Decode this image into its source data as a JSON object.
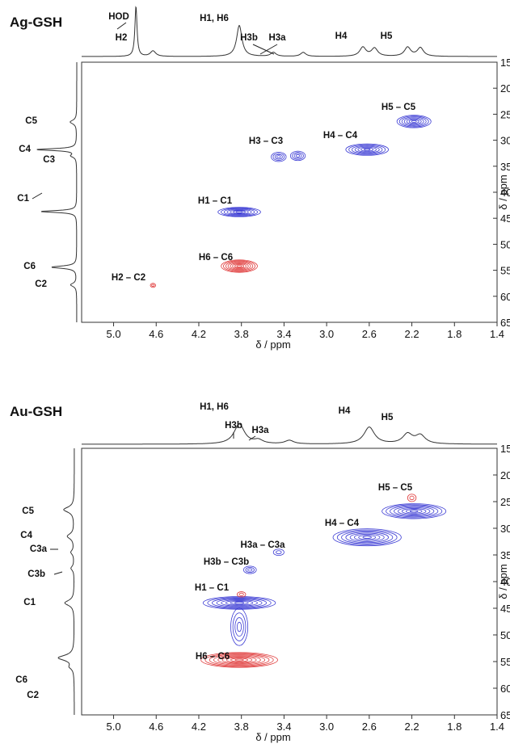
{
  "chart_data": [
    {
      "type": "hsqc-2d-nmr",
      "title": "Ag-GSH",
      "xlabel": "δ / ppm",
      "ylabel": "δ / ppm",
      "xlim": [
        5.3,
        1.4
      ],
      "ylim": [
        15,
        65
      ],
      "x_ticks": [
        "5.0",
        "4.6",
        "4.2",
        "3.8",
        "3.4",
        "3.0",
        "2.6",
        "2.2",
        "1.8",
        "1.4"
      ],
      "y_ticks": [
        "15",
        "20",
        "25",
        "30",
        "35",
        "40",
        "45",
        "50",
        "55",
        "60",
        "65"
      ],
      "top_projection": {
        "peaks": [
          {
            "label": "HOD",
            "x": 4.79,
            "height": 1.0,
            "width": 0.012
          },
          {
            "label": "H2",
            "x": 4.63,
            "height": 0.11,
            "width": 0.03
          },
          {
            "label": "H1, H6",
            "x": 3.82,
            "height": 0.62,
            "width": 0.03
          },
          {
            "label": "H3b",
            "x": 3.5,
            "height": 0.08,
            "width": 0.03
          },
          {
            "label": "H3a",
            "x": 3.22,
            "height": 0.08,
            "width": 0.03
          },
          {
            "label": "H4",
            "x": 2.66,
            "height": 0.18,
            "width": 0.035
          },
          {
            "label": "",
            "x": 2.55,
            "height": 0.16,
            "width": 0.035
          },
          {
            "label": "H5",
            "x": 2.24,
            "height": 0.18,
            "width": 0.035
          },
          {
            "label": "",
            "x": 2.12,
            "height": 0.17,
            "width": 0.035
          }
        ]
      },
      "side_projection": {
        "peaks": [
          {
            "label": "C5",
            "y": 26.5,
            "height": 0.13,
            "width": 0.45
          },
          {
            "label": "C4",
            "y": 31.8,
            "height": 0.8,
            "width": 0.22
          },
          {
            "label": "C3",
            "y": 33.0,
            "height": 0.1,
            "width": 0.35
          },
          {
            "label": "C1",
            "y": 43.7,
            "height": 0.72,
            "width": 0.22
          },
          {
            "label": "C6",
            "y": 54.4,
            "height": 0.5,
            "width": 0.28
          },
          {
            "label": "C2",
            "y": 57.8,
            "height": 0.12,
            "width": 0.4
          }
        ]
      },
      "cross_peaks": [
        {
          "label": "H5 – C5",
          "x": 2.18,
          "y": 26.4,
          "rx": 0.16,
          "ry": 1.2,
          "phase": "positive",
          "levels": 7
        },
        {
          "label": "H4 – C4",
          "x": 2.62,
          "y": 31.8,
          "rx": 0.2,
          "ry": 1.1,
          "phase": "positive",
          "levels": 7
        },
        {
          "label": "H3 – C3",
          "x": 3.45,
          "y": 33.2,
          "rx": 0.07,
          "ry": 0.9,
          "phase": "positive",
          "levels": 4
        },
        {
          "label": "",
          "x": 3.27,
          "y": 33.0,
          "rx": 0.07,
          "ry": 0.9,
          "phase": "positive",
          "levels": 4
        },
        {
          "label": "H1 – C1",
          "x": 3.82,
          "y": 43.8,
          "rx": 0.2,
          "ry": 0.9,
          "phase": "positive",
          "levels": 7
        },
        {
          "label": "H6 – C6",
          "x": 3.82,
          "y": 54.2,
          "rx": 0.17,
          "ry": 1.2,
          "phase": "negative",
          "levels": 8
        },
        {
          "label": "H2 – C2",
          "x": 4.63,
          "y": 57.9,
          "rx": 0.025,
          "ry": 0.4,
          "phase": "negative",
          "levels": 2
        }
      ]
    },
    {
      "type": "hsqc-2d-nmr",
      "title": "Au-GSH",
      "xlabel": "δ / ppm",
      "ylabel": "δ / ppm",
      "xlim": [
        5.3,
        1.4
      ],
      "ylim": [
        15,
        65
      ],
      "x_ticks": [
        "5.0",
        "4.6",
        "4.2",
        "3.8",
        "3.4",
        "3.0",
        "2.6",
        "2.2",
        "1.8",
        "1.4"
      ],
      "y_ticks": [
        "15",
        "20",
        "25",
        "30",
        "35",
        "40",
        "45",
        "50",
        "55",
        "60",
        "65"
      ],
      "top_projection": {
        "peaks": [
          {
            "label": "H1, H6",
            "x": 3.82,
            "height": 0.45,
            "width": 0.06
          },
          {
            "label": "H3b",
            "x": 3.64,
            "height": 0.08,
            "width": 0.05
          },
          {
            "label": "H3a",
            "x": 3.35,
            "height": 0.08,
            "width": 0.05
          },
          {
            "label": "H4",
            "x": 2.6,
            "height": 0.38,
            "width": 0.06
          },
          {
            "label": "H5",
            "x": 2.24,
            "height": 0.22,
            "width": 0.055
          },
          {
            "label": "",
            "x": 2.12,
            "height": 0.19,
            "width": 0.055
          }
        ]
      },
      "side_projection": {
        "peaks": [
          {
            "label": "C5",
            "y": 26.5,
            "height": 0.2,
            "width": 0.6
          },
          {
            "label": "C4",
            "y": 31.5,
            "height": 0.13,
            "width": 0.6
          },
          {
            "label": "C3a",
            "y": 34.5,
            "height": 0.06,
            "width": 0.5
          },
          {
            "label": "C3b",
            "y": 37.5,
            "height": 0.06,
            "width": 0.5
          },
          {
            "label": "C1",
            "y": 44.0,
            "height": 0.18,
            "width": 0.6
          },
          {
            "label": "C6",
            "y": 54.3,
            "height": 0.3,
            "width": 0.6
          },
          {
            "label": "C2",
            "y": 56.0,
            "height": 0.07,
            "width": 0.5
          }
        ]
      },
      "cross_peaks": [
        {
          "label": "H5 – C5",
          "x": 2.18,
          "y": 26.8,
          "rx": 0.3,
          "ry": 1.4,
          "phase": "positive",
          "levels": 8
        },
        {
          "label": "",
          "x": 2.2,
          "y": 24.3,
          "rx": 0.04,
          "ry": 0.7,
          "phase": "negative",
          "levels": 2
        },
        {
          "label": "H4 – C4",
          "x": 2.62,
          "y": 31.7,
          "rx": 0.32,
          "ry": 1.6,
          "phase": "positive",
          "levels": 8
        },
        {
          "label": "H3a – C3a",
          "x": 3.45,
          "y": 34.5,
          "rx": 0.05,
          "ry": 0.6,
          "phase": "positive",
          "levels": 2
        },
        {
          "label": "H3b – C3b",
          "x": 3.72,
          "y": 37.8,
          "rx": 0.06,
          "ry": 0.7,
          "phase": "positive",
          "levels": 3
        },
        {
          "label": "H1 – C1",
          "x": 3.82,
          "y": 44.0,
          "rx": 0.34,
          "ry": 1.2,
          "phase": "positive",
          "levels": 8
        },
        {
          "label": "",
          "x": 3.8,
          "y": 42.4,
          "rx": 0.04,
          "ry": 0.5,
          "phase": "negative",
          "levels": 2
        },
        {
          "label": "",
          "x": 3.82,
          "y": 48.5,
          "rx": 0.08,
          "ry": 3.5,
          "phase": "positive",
          "levels": 4
        },
        {
          "label": "H6 – C6",
          "x": 3.82,
          "y": 54.7,
          "rx": 0.36,
          "ry": 1.4,
          "phase": "negative",
          "levels": 9
        }
      ]
    }
  ]
}
